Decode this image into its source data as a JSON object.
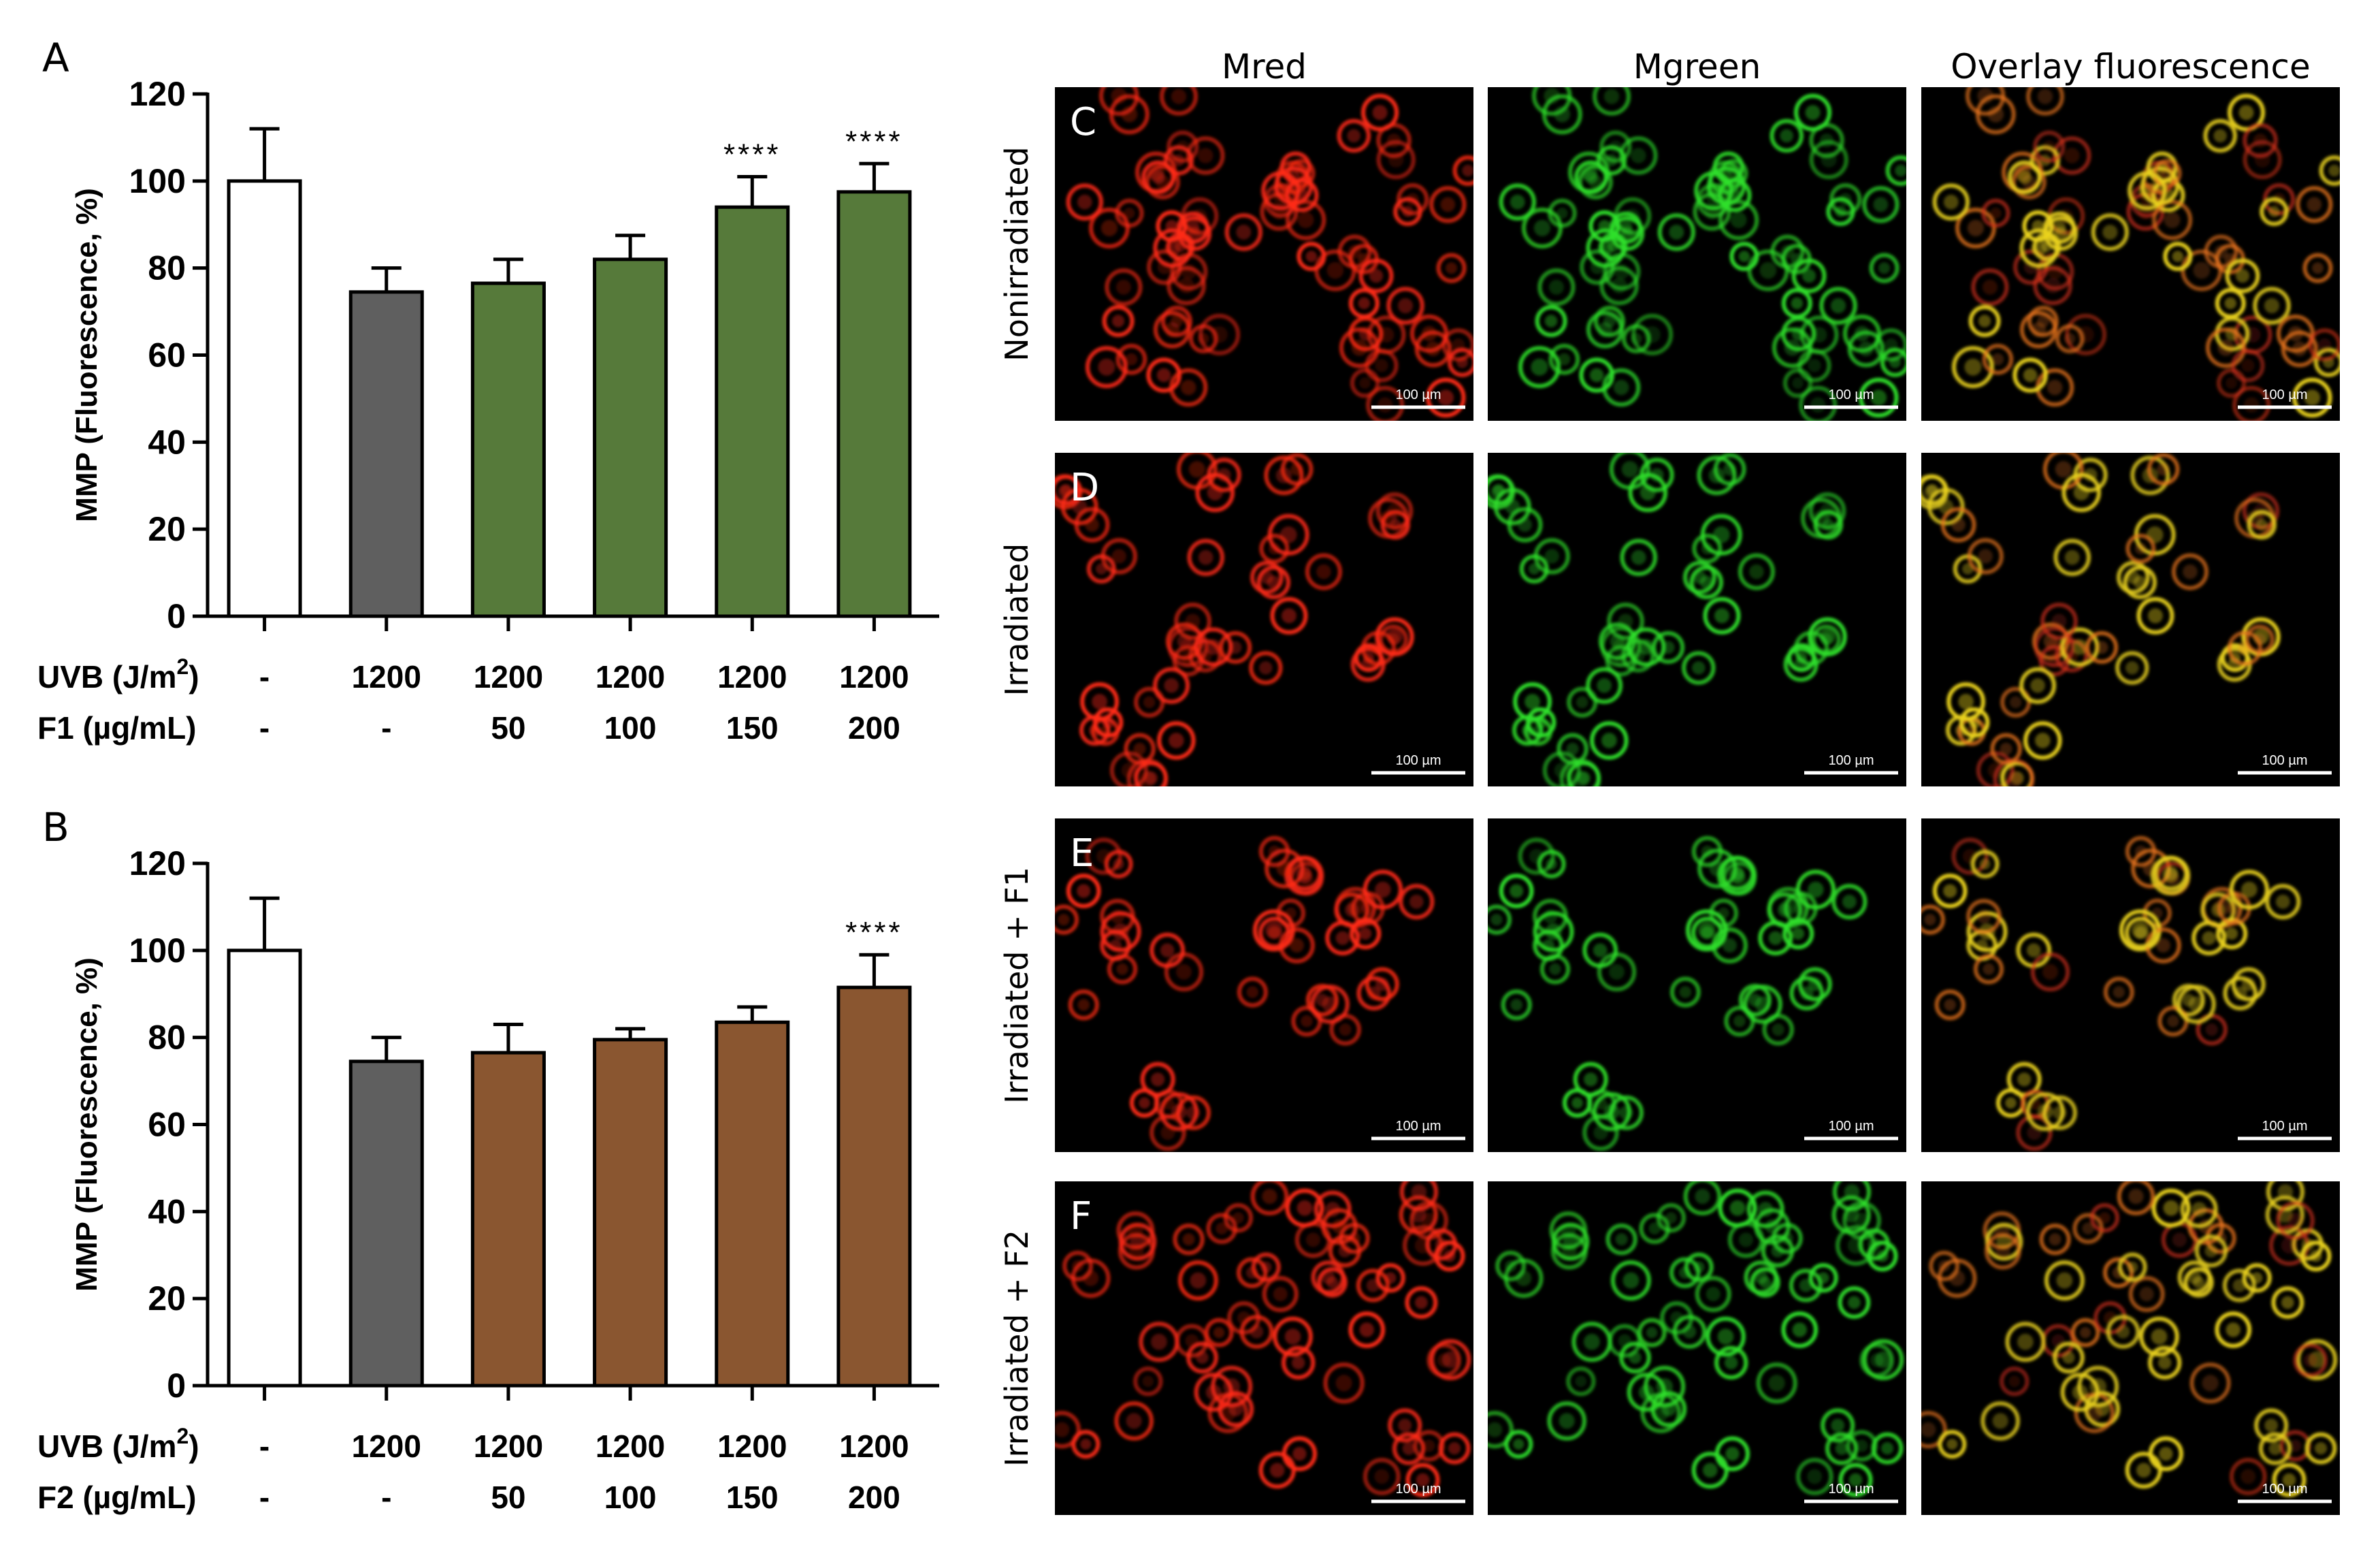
{
  "panels": {
    "A": {
      "letter": "A",
      "ylabel": "MMP (Fluorescence, %)",
      "row1_label": "UVB (J/m",
      "row1_sup": "2",
      "row1_suffix": ")",
      "row1_values": [
        "-",
        "1200",
        "1200",
        "1200",
        "1200",
        "1200"
      ],
      "row2_label": "F1 (µg/mL)",
      "row2_values": [
        "-",
        "-",
        "50",
        "100",
        "150",
        "200"
      ]
    },
    "B": {
      "letter": "B",
      "ylabel": "MMP (Fluorescence, %)",
      "row1_label": "UVB (J/m",
      "row1_sup": "2",
      "row1_suffix": ")",
      "row1_values": [
        "-",
        "1200",
        "1200",
        "1200",
        "1200",
        "1200"
      ],
      "row2_label": "F2 (µg/mL)",
      "row2_values": [
        "-",
        "-",
        "50",
        "100",
        "150",
        "200"
      ]
    }
  },
  "chart_data": [
    {
      "type": "bar",
      "panel": "A",
      "xlabel": "",
      "ylabel": "MMP (Fluorescence, %)",
      "ylim": [
        0,
        120
      ],
      "yticks": [
        0,
        20,
        40,
        60,
        80,
        100,
        120
      ],
      "values": [
        100,
        74.5,
        76.5,
        82,
        94,
        97.5
      ],
      "errors": [
        12,
        5.5,
        5.5,
        5.5,
        7,
        6.5
      ],
      "annotations": [
        "",
        "",
        "",
        "",
        "****",
        "****"
      ],
      "colors": [
        "#ffffff",
        "#5f5f5f",
        "#567a3a",
        "#567a3a",
        "#567a3a",
        "#567a3a"
      ]
    },
    {
      "type": "bar",
      "panel": "B",
      "xlabel": "",
      "ylabel": "MMP (Fluorescence, %)",
      "ylim": [
        0,
        120
      ],
      "yticks": [
        0,
        20,
        40,
        60,
        80,
        100,
        120
      ],
      "values": [
        100,
        74.5,
        76.5,
        79.5,
        83.5,
        91.5
      ],
      "errors": [
        12,
        5.5,
        6.5,
        2.5,
        3.5,
        7.5
      ],
      "annotations": [
        "",
        "",
        "",
        "",
        "",
        "****"
      ],
      "colors": [
        "#ffffff",
        "#5f5f5f",
        "#8a5630",
        "#8a5630",
        "#8a5630",
        "#8a5630"
      ]
    }
  ],
  "micrographs": {
    "columns": [
      "Mred",
      "Mgreen",
      "Overlay fluorescence"
    ],
    "rows": [
      {
        "letter": "C",
        "label": "Nonirradiated"
      },
      {
        "letter": "D",
        "label": "Irradiated"
      },
      {
        "letter": "E",
        "label": "Irradiated + F1"
      },
      {
        "letter": "F",
        "label": "Irradiated + F2"
      }
    ],
    "scale_bar": "100 µm",
    "colors": {
      "red": "#ff2a14",
      "green": "#2ee02a",
      "overlay": "#e88a1c"
    }
  }
}
